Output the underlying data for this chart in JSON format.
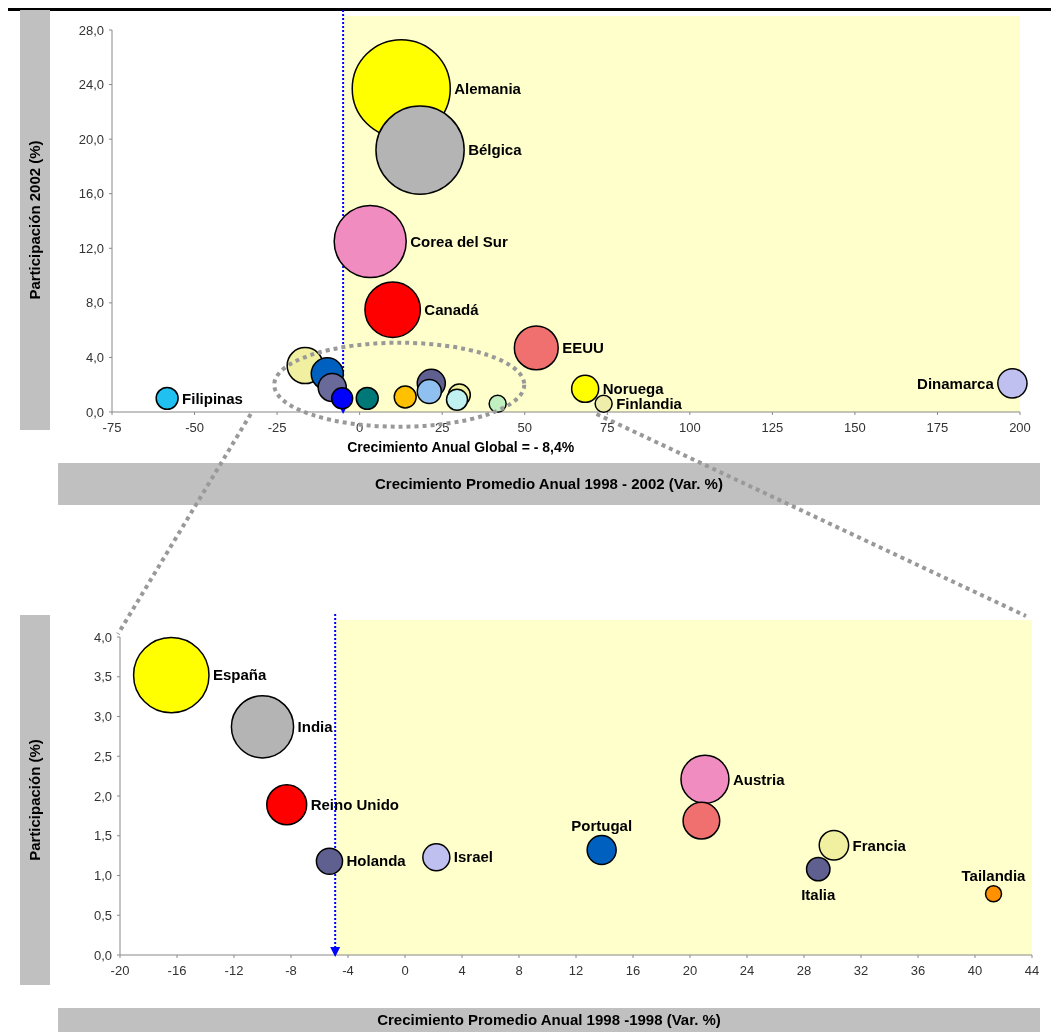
{
  "chart_data": [
    {
      "type": "bubble",
      "xlabel": "Crecimiento Promedio  Anual 1998 - 2002 (Var. %)",
      "ylabel": "Participación 2002 (%)",
      "xlim": [
        -75,
        200
      ],
      "xticks": [
        -75,
        -50,
        -25,
        0,
        25,
        50,
        75,
        100,
        125,
        150,
        175,
        200
      ],
      "ylim": [
        0,
        28
      ],
      "yticks": [
        {
          "value": 0,
          "label": "0,0"
        },
        {
          "value": 4,
          "label": "4,0"
        },
        {
          "value": 8,
          "label": "8,0"
        },
        {
          "value": 12,
          "label": "12,0"
        },
        {
          "value": 16,
          "label": "16,0"
        },
        {
          "value": 20,
          "label": "20,0"
        },
        {
          "value": 24,
          "label": "24,0"
        },
        {
          "value": 28,
          "label": "28,0"
        }
      ],
      "grid": false,
      "legend": false,
      "bands": [
        {
          "axis": "x",
          "from": -5,
          "to": 200,
          "color": "#ffffcc"
        }
      ],
      "ref_lines": [
        {
          "axis": "x",
          "value": -5,
          "label": "Crecimiento Anual Global  = - 8,4%",
          "color": "#0000ff",
          "line_style": "dotted"
        }
      ],
      "series": [
        {
          "name": "Alemania",
          "color": "#ffff00",
          "x": [
            12.6
          ],
          "values": [
            23.7
          ],
          "sizes": [
            1
          ]
        },
        {
          "name": "Bélgica",
          "color": "#b4b4b4",
          "x": [
            18.3
          ],
          "values": [
            19.2
          ],
          "sizes": [
            0.81
          ]
        },
        {
          "name": "Corea del Sur",
          "color": "#f08cc0",
          "x": [
            3.2
          ],
          "values": [
            12.5
          ],
          "sizes": [
            0.54
          ]
        },
        {
          "name": "Canadá",
          "color": "#ff0000",
          "x": [
            10
          ],
          "values": [
            7.5
          ],
          "sizes": [
            0.32
          ]
        },
        {
          "name": "EEUU",
          "color": "#f07070",
          "x": [
            53.5
          ],
          "values": [
            4.7
          ],
          "sizes": [
            0.2
          ]
        },
        {
          "name": "Noruega",
          "color": "#ffff00",
          "x": [
            68.3
          ],
          "values": [
            1.7
          ],
          "sizes": [
            0.076
          ]
        },
        {
          "name": "Finlandia",
          "color": "#eeeeaa",
          "x": [
            73.9
          ],
          "values": [
            0.6
          ],
          "sizes": [
            0.03
          ]
        },
        {
          "name": "Dinamarca",
          "color": "#c0c0f0",
          "x": [
            197.7
          ],
          "values": [
            2.1
          ],
          "sizes": [
            0.089
          ]
        },
        {
          "name": "Filipinas",
          "color": "#20c0f0",
          "x": [
            -58.3
          ],
          "values": [
            1.0
          ],
          "sizes": [
            0.05
          ]
        },
        {
          "color": "#f0f0a0",
          "x": [
            -16.5
          ],
          "values": [
            3.4
          ],
          "sizes": [
            0.135
          ]
        },
        {
          "color": "#0060c0",
          "x": [
            -9.8
          ],
          "values": [
            2.8
          ],
          "sizes": [
            0.107
          ]
        },
        {
          "color": "#6a6a9a",
          "x": [
            -8.3
          ],
          "values": [
            1.8
          ],
          "sizes": [
            0.082
          ]
        },
        {
          "color": "#0000ff",
          "x": [
            -5.3
          ],
          "values": [
            1.0
          ],
          "sizes": [
            0.046
          ]
        },
        {
          "color": "#007878",
          "x": [
            2.3
          ],
          "values": [
            1.0
          ],
          "sizes": [
            0.05
          ]
        },
        {
          "color": "#ffc000",
          "x": [
            13.8
          ],
          "values": [
            1.1
          ],
          "sizes": [
            0.05
          ]
        },
        {
          "color": "#606090",
          "x": [
            21.7
          ],
          "values": [
            2.1
          ],
          "sizes": [
            0.082
          ]
        },
        {
          "color": "#90c0f0",
          "x": [
            21.1
          ],
          "values": [
            1.5
          ],
          "sizes": [
            0.06
          ]
        },
        {
          "color": "#f0f0a0",
          "x": [
            30.2
          ],
          "values": [
            1.25
          ],
          "sizes": [
            0.05
          ]
        },
        {
          "color": "#c0f0f0",
          "x": [
            29.5
          ],
          "values": [
            0.9
          ],
          "sizes": [
            0.046
          ]
        },
        {
          "color": "#c0f0c0",
          "x": [
            41.8
          ],
          "values": [
            0.6
          ],
          "sizes": [
            0.03
          ]
        }
      ]
    },
    {
      "type": "bubble",
      "xlabel": "Crecimiento Promedio  Anual 1998 -1998 (Var. %)",
      "ylabel": "Participación (%)",
      "xlim": [
        -20,
        44
      ],
      "xticks": [
        -20,
        -16,
        -12,
        -8,
        -4,
        0,
        4,
        8,
        12,
        16,
        20,
        24,
        28,
        32,
        36,
        40,
        44
      ],
      "ylim": [
        0,
        4
      ],
      "yticks": [
        {
          "value": 0,
          "label": "0,0"
        },
        {
          "value": 0.5,
          "label": "0,5"
        },
        {
          "value": 1,
          "label": "1,0"
        },
        {
          "value": 1.5,
          "label": "1,5"
        },
        {
          "value": 2,
          "label": "2,0"
        },
        {
          "value": 2.5,
          "label": "2,5"
        },
        {
          "value": 3,
          "label": "3,0"
        },
        {
          "value": 3.5,
          "label": "3,5"
        },
        {
          "value": 4,
          "label": "4,0"
        }
      ],
      "grid": false,
      "legend": false,
      "bands": [
        {
          "axis": "x",
          "from": -4.9,
          "to": 44,
          "color": "#ffffcc"
        }
      ],
      "ref_lines": [
        {
          "axis": "x",
          "value": -4.9,
          "color": "#0000ff",
          "line_style": "dotted"
        }
      ],
      "series": [
        {
          "name": "España",
          "color": "#ffff00",
          "x": [
            -16.4
          ],
          "values": [
            3.52
          ],
          "sizes": [
            1
          ]
        },
        {
          "name": "India",
          "color": "#b4b4b4",
          "x": [
            -10
          ],
          "values": [
            2.87
          ],
          "sizes": [
            0.68
          ]
        },
        {
          "name": "Reino Unido",
          "color": "#ff0000",
          "x": [
            -8.3
          ],
          "values": [
            1.89
          ],
          "sizes": [
            0.28
          ]
        },
        {
          "name": "Holanda",
          "color": "#606090",
          "x": [
            -5.3
          ],
          "values": [
            1.18
          ],
          "sizes": [
            0.12
          ]
        },
        {
          "name": "Israel",
          "color": "#c0c0f0",
          "x": [
            2.2
          ],
          "values": [
            1.23
          ],
          "sizes": [
            0.128
          ]
        },
        {
          "name": "Portugal",
          "color": "#0060c0",
          "x": [
            13.8
          ],
          "values": [
            1.32
          ],
          "sizes": [
            0.148
          ]
        },
        {
          "name": "Austria",
          "color": "#f08cc0",
          "x": [
            21.05
          ],
          "values": [
            2.21
          ],
          "sizes": [
            0.405
          ]
        },
        {
          "color": "#f07070",
          "x": [
            20.8
          ],
          "values": [
            1.69
          ],
          "sizes": [
            0.236
          ]
        },
        {
          "name": "Francia",
          "color": "#f0f0a0",
          "x": [
            30.1
          ],
          "values": [
            1.38
          ],
          "sizes": [
            0.152
          ]
        },
        {
          "name": "Italia",
          "color": "#606090",
          "x": [
            29
          ],
          "values": [
            1.08
          ],
          "sizes": [
            0.096
          ]
        },
        {
          "name": "Tailandia",
          "color": "#ff9000",
          "x": [
            41.3
          ],
          "values": [
            0.77
          ],
          "sizes": [
            0.045
          ]
        }
      ]
    }
  ]
}
